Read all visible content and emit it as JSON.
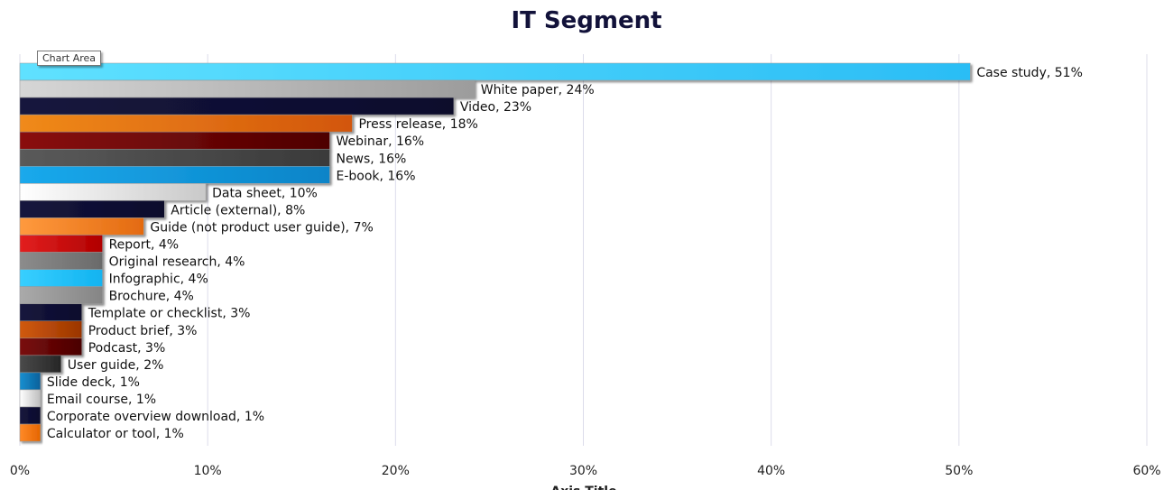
{
  "tooltip": "Chart Area",
  "chart_data": {
    "type": "bar",
    "orientation": "horizontal",
    "title": "IT Segment",
    "xlabel": "Axis Title",
    "ylabel": "",
    "xlim": [
      0,
      60
    ],
    "x_ticks": [
      "0%",
      "10%",
      "20%",
      "30%",
      "40%",
      "50%",
      "60%"
    ],
    "grid": true,
    "legend": "none",
    "categories": [
      "Case study",
      "White paper",
      "Video",
      "Press release",
      "Webinar",
      "News",
      "E-book",
      "Data sheet",
      "Article (external)",
      "Guide (not product user guide)",
      "Report",
      "Original research",
      "Infographic",
      "Brochure",
      "Template or checklist",
      "Product brief",
      "Podcast",
      "User guide",
      "Slide deck",
      "Email course",
      "Corporate overview download",
      "Calculator or tool"
    ],
    "values": [
      50.6,
      24.2,
      23.1,
      17.7,
      16.5,
      16.5,
      16.5,
      9.9,
      7.7,
      6.6,
      4.4,
      4.4,
      4.4,
      4.4,
      3.3,
      3.3,
      3.3,
      2.2,
      1.1,
      1.1,
      1.1,
      1.1
    ],
    "data_labels": [
      "Case study, 51%",
      "White paper, 24%",
      "Video, 23%",
      "Press release, 18%",
      "Webinar, 16%",
      "News, 16%",
      "E-book, 16%",
      "Data sheet, 10%",
      "Article (external), 8%",
      "Guide (not product user guide), 7%",
      "Report, 4%",
      "Original research, 4%",
      "Infographic, 4%",
      "Brochure, 4%",
      "Template or checklist, 3%",
      "Product brief, 3%",
      "Podcast, 3%",
      "User guide, 2%",
      "Slide deck, 1%",
      "Email course, 1%",
      "Corporate overview download, 1%",
      "Calculator or tool, 1%"
    ],
    "bar_colors": [
      [
        "#5fe1ff",
        "#2bbdf5"
      ],
      [
        "#d6d6d6",
        "#9c9c9c"
      ],
      [
        "#15153d",
        "#0c0c2c"
      ],
      [
        "#f08a1a",
        "#d2560c"
      ],
      [
        "#8a1010",
        "#4e0000"
      ],
      [
        "#5a5a5a",
        "#3a3a3a"
      ],
      [
        "#1aa9ec",
        "#0a84c8"
      ],
      [
        "#ffffff",
        "#c9c9c9"
      ],
      [
        "#15153d",
        "#0c0c2c"
      ],
      [
        "#ff9a3e",
        "#e36a10"
      ],
      [
        "#e32020",
        "#b00000"
      ],
      [
        "#8c8c8c",
        "#6a6a6a"
      ],
      [
        "#38cfff",
        "#12b3f0"
      ],
      [
        "#aaaaaa",
        "#858585"
      ],
      [
        "#15153d",
        "#0c0c2c"
      ],
      [
        "#d05a10",
        "#9a3500"
      ],
      [
        "#7a0c0c",
        "#4a0000"
      ],
      [
        "#4a4a4a",
        "#262626"
      ],
      [
        "#1a8fd0",
        "#08609a"
      ],
      [
        "#ffffff",
        "#bdbdbd"
      ],
      [
        "#15153d",
        "#0c0c2c"
      ],
      [
        "#ff8a28",
        "#e56500"
      ]
    ]
  }
}
